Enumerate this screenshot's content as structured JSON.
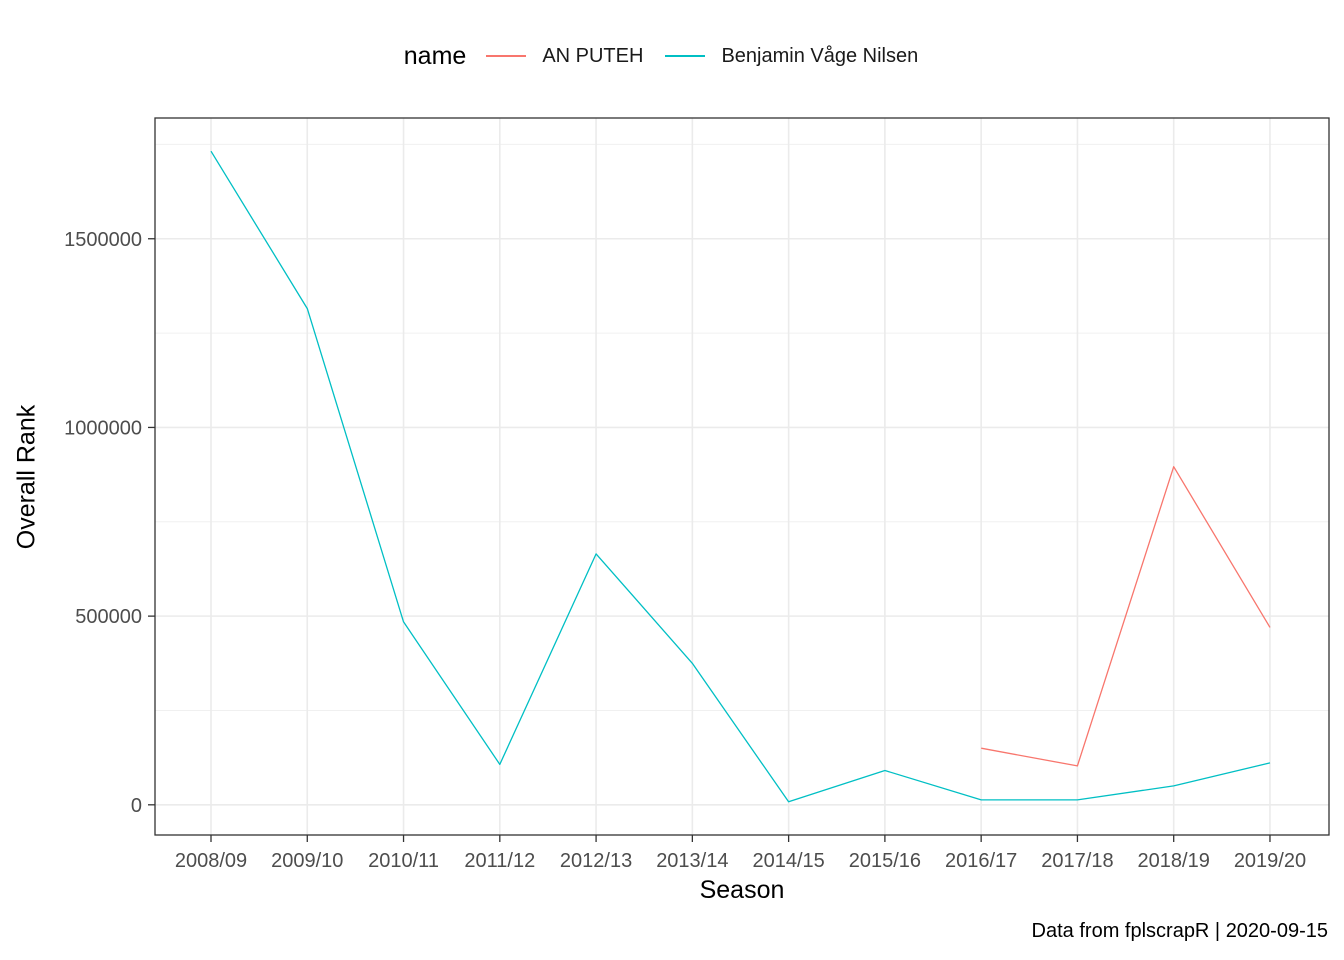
{
  "chart_data": {
    "type": "line",
    "xlabel": "Season",
    "ylabel": "Overall Rank",
    "caption": "Data from fplscrapR | 2020-09-15",
    "categories": [
      "2008/09",
      "2009/10",
      "2010/11",
      "2011/12",
      "2012/13",
      "2013/14",
      "2014/15",
      "2015/16",
      "2016/17",
      "2017/18",
      "2018/19",
      "2019/20"
    ],
    "y_ticks": [
      0,
      500000,
      1000000,
      1500000
    ],
    "y_tick_labels": [
      "0",
      "500000",
      "1000000",
      "1500000"
    ],
    "ylim": [
      -80000,
      1820000
    ],
    "grid": true,
    "legend": {
      "title": "name",
      "position": "top"
    },
    "series": [
      {
        "name": "AN PUTEH",
        "color": "#F8766D",
        "values": [
          null,
          null,
          null,
          null,
          null,
          null,
          null,
          null,
          150000,
          103000,
          896000,
          470000
        ]
      },
      {
        "name": "Benjamin Våge Nilsen",
        "color": "#00BFC4",
        "values": [
          1732000,
          1315000,
          485000,
          107000,
          665000,
          375000,
          8000,
          91000,
          13000,
          13000,
          50000,
          111000
        ]
      }
    ]
  }
}
